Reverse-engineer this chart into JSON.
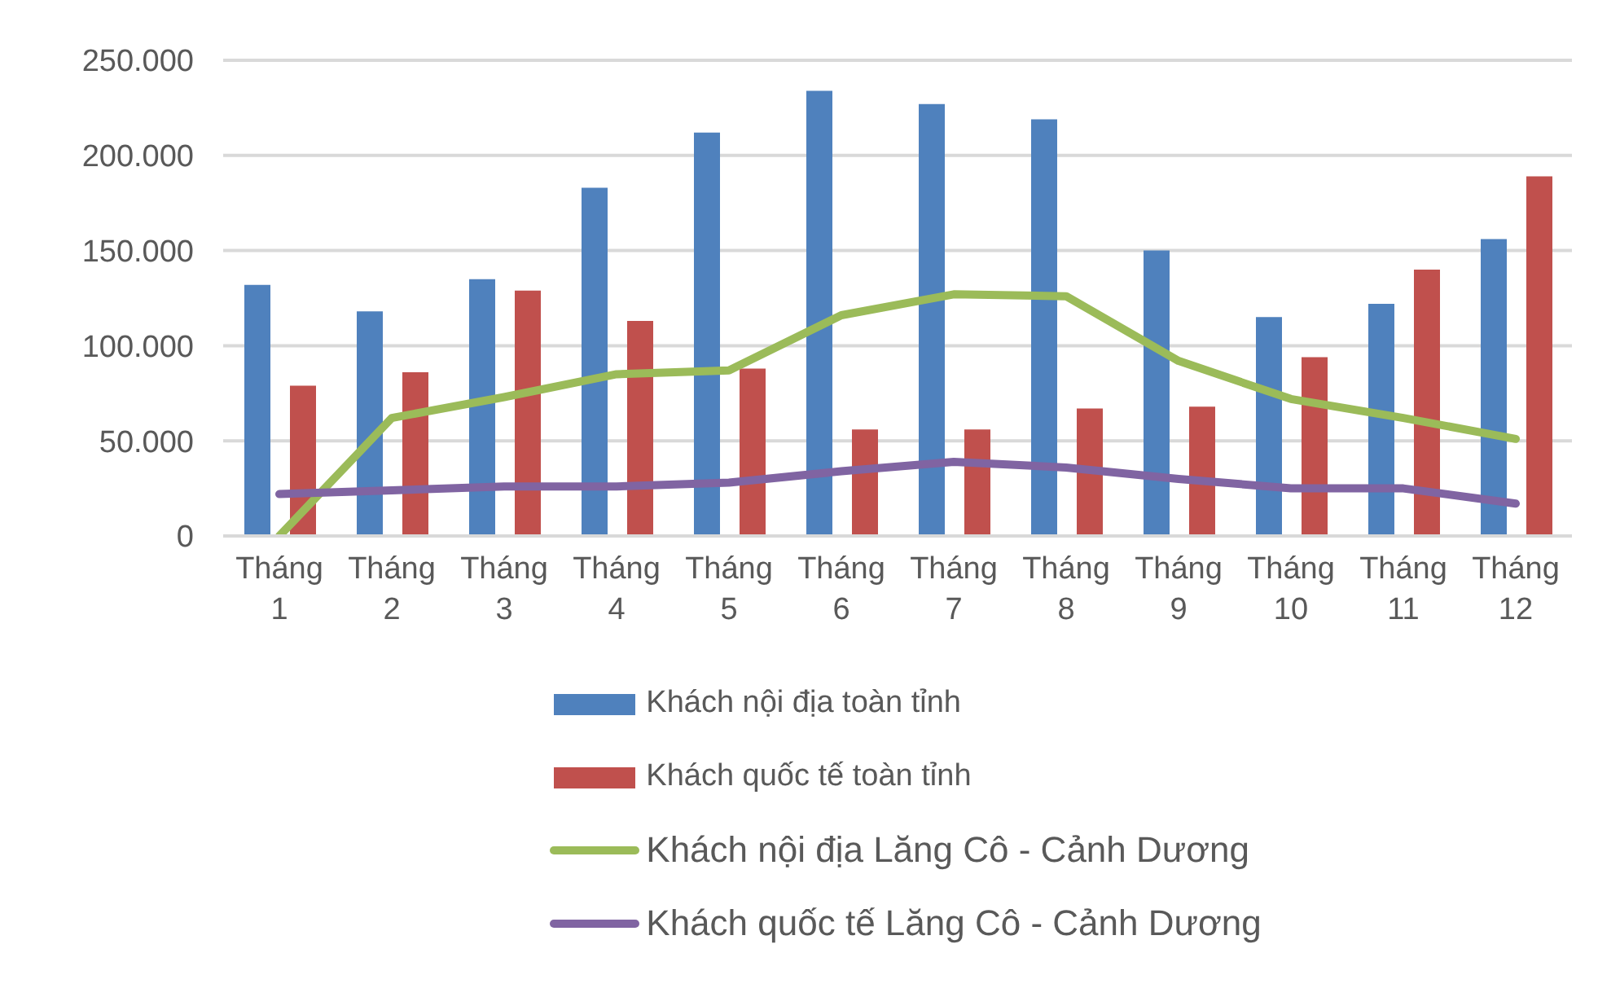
{
  "chart_data": {
    "type": "bar",
    "categories": [
      "Tháng 1",
      "Tháng 2",
      "Tháng 3",
      "Tháng 4",
      "Tháng 5",
      "Tháng 6",
      "Tháng 7",
      "Tháng 8",
      "Tháng 9",
      "Tháng 10",
      "Tháng 11",
      "Tháng 12"
    ],
    "series": [
      {
        "name": "Khách nội địa toàn tỉnh",
        "color": "#4f81bd",
        "values": [
          132000,
          118000,
          135000,
          183000,
          212000,
          234000,
          227000,
          219000,
          150000,
          115000,
          122000,
          156000
        ]
      },
      {
        "name": "Khách quốc tế toàn tỉnh",
        "color": "#c0504d",
        "values": [
          79000,
          86000,
          129000,
          113000,
          88000,
          56000,
          56000,
          67000,
          68000,
          94000,
          140000,
          189000
        ]
      },
      {
        "name": "Khách nội địa Lăng Cô - Cảnh Dương",
        "type": "line",
        "color": "#9bbb59",
        "values": [
          0,
          62000,
          73000,
          85000,
          87000,
          116000,
          127000,
          126000,
          92000,
          72000,
          62000,
          51000
        ]
      },
      {
        "name": "Khách quốc tế Lăng Cô - Cảnh Dương",
        "type": "line",
        "color": "#8064a2",
        "values": [
          22000,
          24000,
          26000,
          26000,
          28000,
          34000,
          39000,
          36000,
          30000,
          25000,
          25000,
          17000
        ]
      }
    ],
    "ylim": [
      0,
      250000
    ],
    "yticks": [
      {
        "value": 0,
        "label": "0"
      },
      {
        "value": 50000,
        "label": "50.000"
      },
      {
        "value": 100000,
        "label": "100.000"
      },
      {
        "value": 150000,
        "label": "150.000"
      },
      {
        "value": 200000,
        "label": "200.000"
      },
      {
        "value": 250000,
        "label": "250.000"
      }
    ],
    "grid": "y",
    "legend": "bottom",
    "marker": "none",
    "line_style": "solid"
  }
}
